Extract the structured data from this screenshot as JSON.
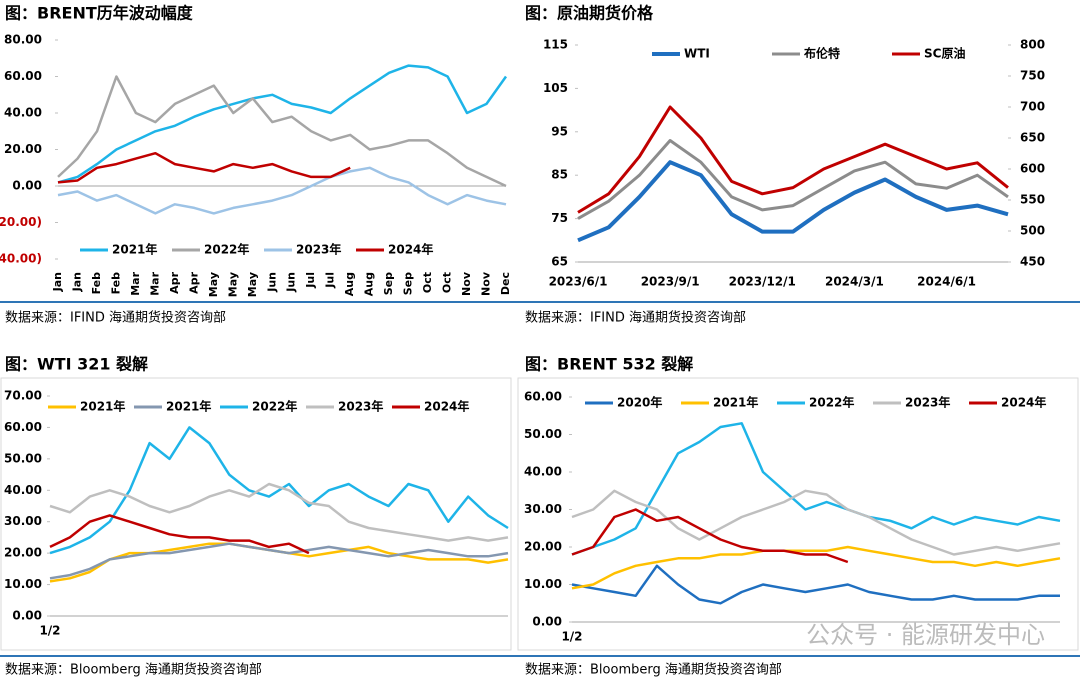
{
  "chart_data": [
    {
      "type": "line",
      "title": "图：BRENT历年波动幅度",
      "categories": [
        "Jan",
        "Jan",
        "Feb",
        "Feb",
        "Mar",
        "Mar",
        "Apr",
        "Apr",
        "May",
        "May",
        "May",
        "Jun",
        "Jun",
        "Jul",
        "Jul",
        "Aug",
        "Aug",
        "Sep",
        "Sep",
        "Oct",
        "Oct",
        "Nov",
        "Nov",
        "Dec"
      ],
      "ylim": [
        -40,
        80
      ],
      "yticks": [
        {
          "value": 80,
          "label": "80.00"
        },
        {
          "value": 60,
          "label": "60.00"
        },
        {
          "value": 40,
          "label": "40.00"
        },
        {
          "value": 20,
          "label": "20.00"
        },
        {
          "value": 0,
          "label": "0.00"
        },
        {
          "value": -20,
          "label": "(20.00)"
        },
        {
          "value": -40,
          "label": "(40.00)"
        }
      ],
      "negative_tick_color": "#c00000",
      "series": [
        {
          "name": "2021年",
          "color": "#1eb4e8",
          "values": [
            2,
            5,
            12,
            20,
            25,
            30,
            33,
            38,
            42,
            45,
            48,
            50,
            45,
            43,
            40,
            48,
            55,
            62,
            66,
            65,
            60,
            40,
            45,
            60
          ]
        },
        {
          "name": "2022年",
          "color": "#a6a6a6",
          "values": [
            5,
            15,
            30,
            60,
            40,
            35,
            45,
            50,
            55,
            40,
            48,
            35,
            38,
            30,
            25,
            28,
            20,
            22,
            25,
            25,
            18,
            10,
            5,
            0
          ]
        },
        {
          "name": "2023年",
          "color": "#9dc3e6",
          "values": [
            -5,
            -3,
            -8,
            -5,
            -10,
            -15,
            -10,
            -12,
            -15,
            -12,
            -10,
            -8,
            -5,
            0,
            5,
            8,
            10,
            5,
            2,
            -5,
            -10,
            -5,
            -8,
            -10
          ]
        },
        {
          "name": "2024年",
          "color": "#c00000",
          "values": [
            2,
            3,
            10,
            12,
            15,
            18,
            12,
            10,
            8,
            12,
            10,
            12,
            8,
            5,
            5,
            10,
            null,
            null,
            null,
            null,
            null,
            null,
            null,
            null
          ]
        }
      ]
    },
    {
      "type": "line",
      "title": "图：原油期货价格",
      "categories": [
        "2023/6/1",
        null,
        null,
        "2023/9/1",
        null,
        null,
        "2023/12/1",
        null,
        null,
        "2024/3/1",
        null,
        null,
        "2024/6/1",
        null,
        null
      ],
      "ylim": [
        65,
        115
      ],
      "yticks": [
        65,
        75,
        85,
        95,
        105,
        115
      ],
      "y2lim": [
        450,
        800
      ],
      "y2ticks": [
        450,
        500,
        550,
        600,
        650,
        700,
        750,
        800
      ],
      "series": [
        {
          "name": "WTI",
          "color": "#1f6fc0",
          "width": 4,
          "values": [
            70,
            73,
            80,
            88,
            85,
            76,
            72,
            72,
            77,
            81,
            84,
            80,
            77,
            78,
            76
          ]
        },
        {
          "name": "布伦特",
          "color": "#8c8c8c",
          "width": 3,
          "values": [
            75,
            79,
            85,
            93,
            88,
            80,
            77,
            78,
            82,
            86,
            88,
            83,
            82,
            85,
            80
          ]
        },
        {
          "name": "SC原油",
          "color": "#c00000",
          "width": 3,
          "axis": "y2",
          "values": [
            530,
            560,
            620,
            700,
            650,
            580,
            560,
            570,
            600,
            620,
            640,
            620,
            600,
            610,
            570
          ]
        }
      ]
    },
    {
      "type": "line",
      "title": "图：WTI 321 裂解",
      "categories": [
        "1/2",
        null,
        null,
        null,
        null,
        null,
        null,
        null,
        null,
        null,
        null,
        null,
        null,
        null,
        null,
        null,
        null,
        null,
        null,
        null,
        null,
        null,
        null,
        null
      ],
      "ylim": [
        0,
        70
      ],
      "yticks": [
        {
          "value": 0,
          "label": "0.00"
        },
        {
          "value": 10,
          "label": "10.00"
        },
        {
          "value": 20,
          "label": "20.00"
        },
        {
          "value": 30,
          "label": "30.00"
        },
        {
          "value": 40,
          "label": "40.00"
        },
        {
          "value": 50,
          "label": "50.00"
        },
        {
          "value": 60,
          "label": "60.00"
        },
        {
          "value": 70,
          "label": "70.00"
        }
      ],
      "series": [
        {
          "name": "2021年",
          "color": "#ffc000",
          "values": [
            11,
            12,
            14,
            18,
            20,
            20,
            21,
            22,
            23,
            23,
            22,
            21,
            20,
            19,
            20,
            21,
            22,
            20,
            19,
            18,
            18,
            18,
            17,
            18
          ]
        },
        {
          "name": "2021年",
          "color": "#8497b0",
          "values": [
            12,
            13,
            15,
            18,
            19,
            20,
            20,
            21,
            22,
            23,
            22,
            21,
            20,
            21,
            22,
            21,
            20,
            19,
            20,
            21,
            20,
            19,
            19,
            20
          ]
        },
        {
          "name": "2022年",
          "color": "#1eb4e8",
          "values": [
            20,
            22,
            25,
            30,
            40,
            55,
            50,
            60,
            55,
            45,
            40,
            38,
            42,
            35,
            40,
            42,
            38,
            35,
            42,
            40,
            30,
            38,
            32,
            28
          ]
        },
        {
          "name": "2023年",
          "color": "#bfbfbf",
          "values": [
            35,
            33,
            38,
            40,
            38,
            35,
            33,
            35,
            38,
            40,
            38,
            42,
            40,
            36,
            35,
            30,
            28,
            27,
            26,
            25,
            24,
            25,
            24,
            25
          ]
        },
        {
          "name": "2024年",
          "color": "#c00000",
          "values": [
            22,
            25,
            30,
            32,
            30,
            28,
            26,
            25,
            25,
            24,
            24,
            22,
            23,
            20,
            null,
            null,
            null,
            null,
            null,
            null,
            null,
            null,
            null,
            null
          ]
        }
      ]
    },
    {
      "type": "line",
      "title": "图：BRENT 532 裂解",
      "categories": [
        "1/2",
        null,
        null,
        null,
        null,
        null,
        null,
        null,
        null,
        null,
        null,
        null,
        null,
        null,
        null,
        null,
        null,
        null,
        null,
        null,
        null,
        null,
        null,
        null
      ],
      "ylim": [
        0,
        60
      ],
      "yticks": [
        {
          "value": 0,
          "label": "0.00"
        },
        {
          "value": 10,
          "label": "10.00"
        },
        {
          "value": 20,
          "label": "20.00"
        },
        {
          "value": 30,
          "label": "30.00"
        },
        {
          "value": 40,
          "label": "40.00"
        },
        {
          "value": 50,
          "label": "50.00"
        },
        {
          "value": 60,
          "label": "60.00"
        }
      ],
      "series": [
        {
          "name": "2020年",
          "color": "#1f6fc0",
          "values": [
            10,
            9,
            8,
            7,
            15,
            10,
            6,
            5,
            8,
            10,
            9,
            8,
            9,
            10,
            8,
            7,
            6,
            6,
            7,
            6,
            6,
            6,
            7,
            7
          ]
        },
        {
          "name": "2021年",
          "color": "#ffc000",
          "values": [
            9,
            10,
            13,
            15,
            16,
            17,
            17,
            18,
            18,
            19,
            19,
            19,
            19,
            20,
            19,
            18,
            17,
            16,
            16,
            15,
            16,
            15,
            16,
            17
          ]
        },
        {
          "name": "2022年",
          "color": "#1eb4e8",
          "values": [
            18,
            20,
            22,
            25,
            35,
            45,
            48,
            52,
            53,
            40,
            35,
            30,
            32,
            30,
            28,
            27,
            25,
            28,
            26,
            28,
            27,
            26,
            28,
            27
          ]
        },
        {
          "name": "2023年",
          "color": "#bfbfbf",
          "values": [
            28,
            30,
            35,
            32,
            30,
            25,
            22,
            25,
            28,
            30,
            32,
            35,
            34,
            30,
            28,
            25,
            22,
            20,
            18,
            19,
            20,
            19,
            20,
            21
          ]
        },
        {
          "name": "2024年",
          "color": "#c00000",
          "values": [
            18,
            20,
            28,
            30,
            27,
            28,
            25,
            22,
            20,
            19,
            19,
            18,
            18,
            16,
            null,
            null,
            null,
            null,
            null,
            null,
            null,
            null,
            null,
            null
          ]
        }
      ]
    }
  ],
  "sources": [
    "数据来源：IFIND  海通期货投资咨询部",
    "数据来源：IFIND  海通期货投资咨询部",
    "数据来源：Bloomberg  海通期货投资咨询部",
    "数据来源：Bloomberg  海通期货投资咨询部"
  ],
  "watermark": "公众号 · 能源研发中心"
}
